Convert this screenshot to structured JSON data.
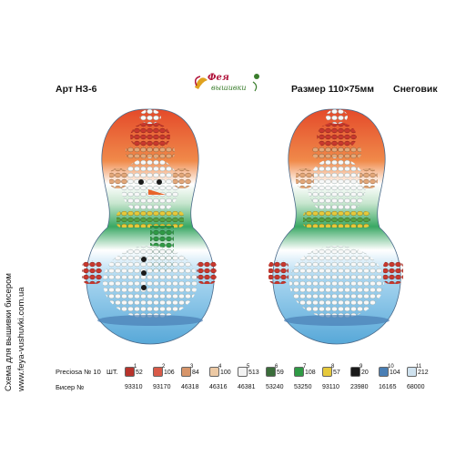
{
  "side": {
    "scheme_text": "Схема для вышивки бисером",
    "url": "www.feya-vushuvki.com.ua"
  },
  "header": {
    "article": "Арт НЗ-6",
    "size": "Размер 110×75мм",
    "title": "Снеговик"
  },
  "logo": {
    "line1": "Фея",
    "line2": "вышивки",
    "icon": "fairy-logo-icon"
  },
  "legend": {
    "preciosa_label": "Preciosa № 10",
    "pcs_label": "ШТ.",
    "bead_label": "Бисер №",
    "items": [
      {
        "num": "1",
        "count": "52",
        "code": "93310",
        "color": "#b8332c"
      },
      {
        "num": "2",
        "count": "106",
        "code": "93170",
        "color": "#d95a48"
      },
      {
        "num": "3",
        "count": "84",
        "code": "46318",
        "color": "#d7956a"
      },
      {
        "num": "4",
        "count": "100",
        "code": "46316",
        "color": "#ecc9a4"
      },
      {
        "num": "5",
        "count": "513",
        "code": "46381",
        "color": "#f3f3f3"
      },
      {
        "num": "6",
        "count": "59",
        "code": "53240",
        "color": "#3a6d3a"
      },
      {
        "num": "7",
        "count": "108",
        "code": "53250",
        "color": "#2f9a45"
      },
      {
        "num": "8",
        "count": "57",
        "code": "93110",
        "color": "#e6c93b"
      },
      {
        "num": "9",
        "count": "20",
        "code": "23980",
        "color": "#1a1a1a"
      },
      {
        "num": "10",
        "count": "104",
        "code": "16165",
        "color": "#4a7fb5"
      },
      {
        "num": "11",
        "count": "212",
        "code": "68000",
        "color": "#cfe2ef"
      }
    ]
  }
}
